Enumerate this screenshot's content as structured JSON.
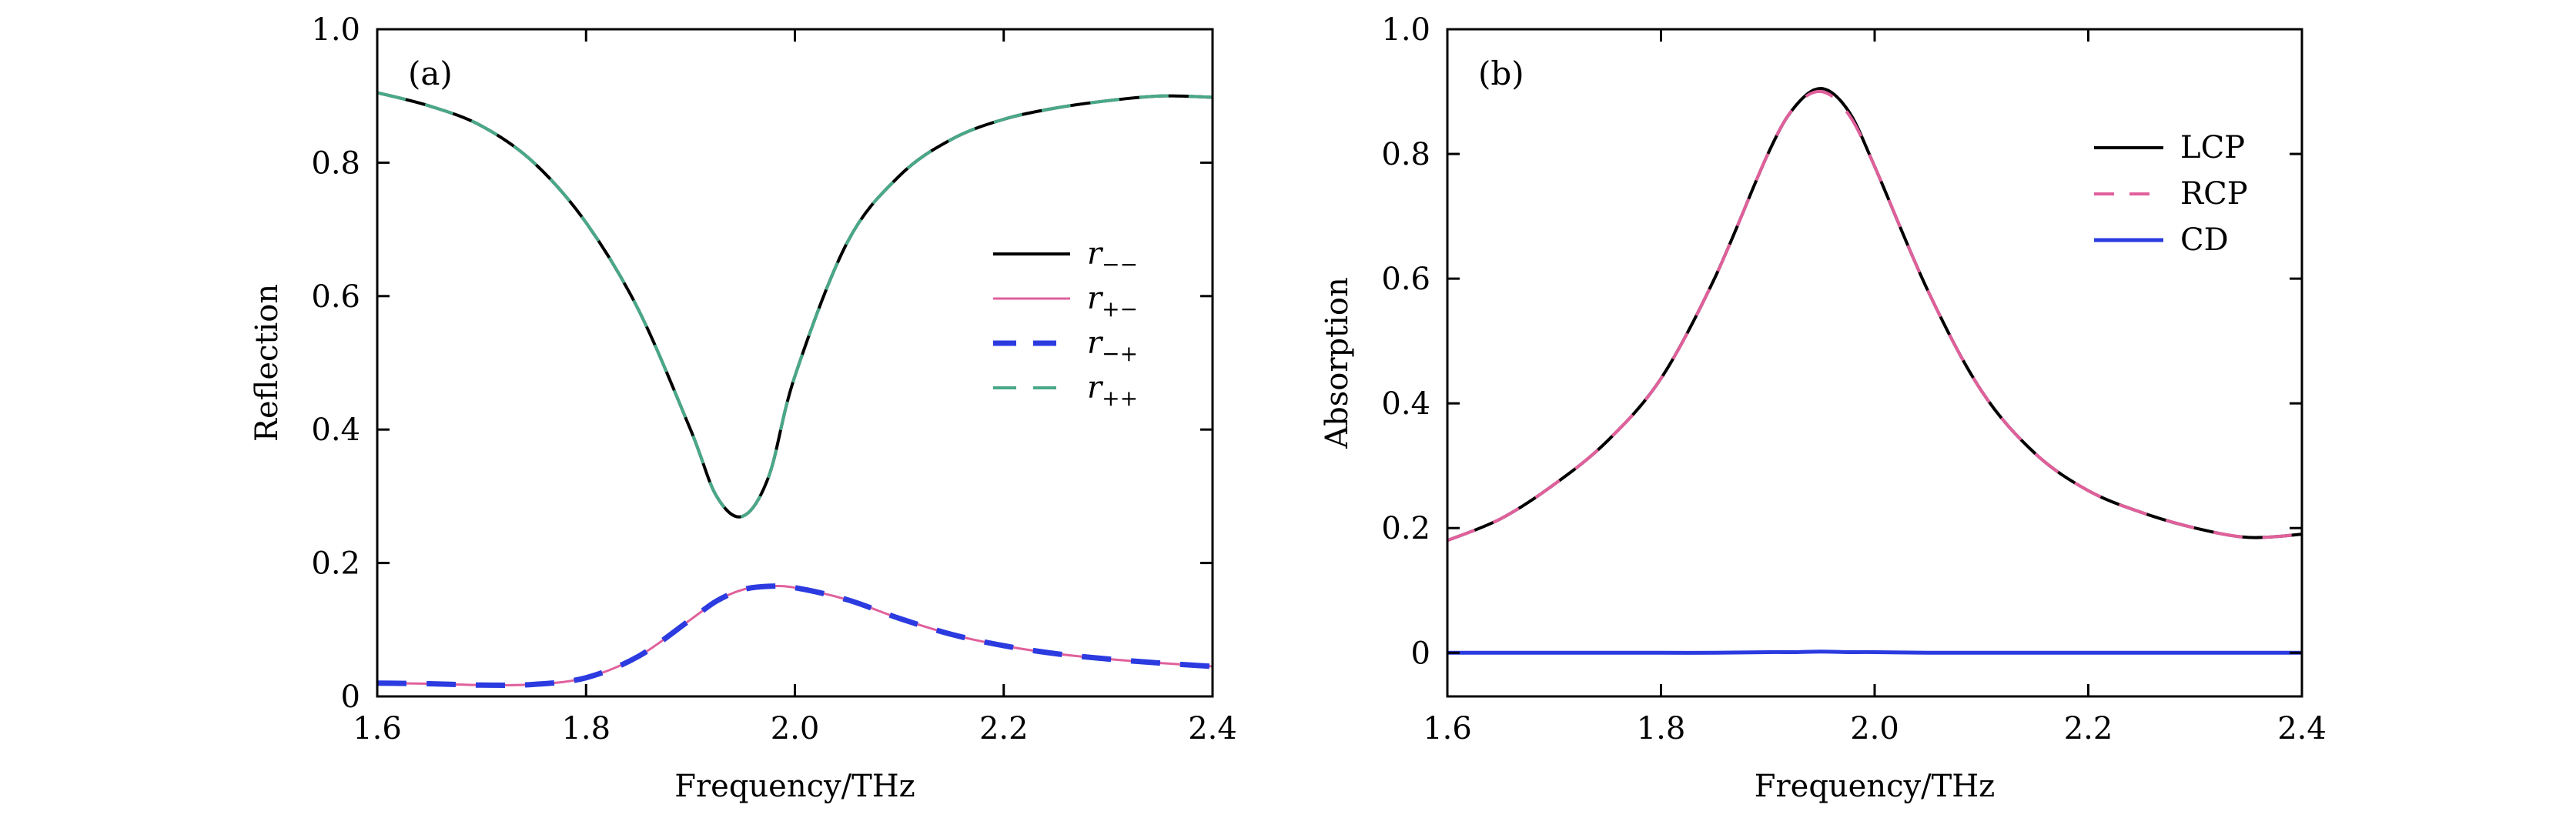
{
  "chart_data": [
    {
      "type": "line",
      "panel_label": "(a)",
      "xlabel": "Frequency/THz",
      "ylabel": "Reflection",
      "xlim": [
        1.6,
        2.4
      ],
      "ylim": [
        0,
        1.0
      ],
      "xticks": [
        1.6,
        1.8,
        2.0,
        2.2,
        2.4
      ],
      "xtick_labels": [
        "1.6",
        "1.8",
        "2.0",
        "2.2",
        "2.4"
      ],
      "yticks": [
        0,
        0.2,
        0.4,
        0.6,
        0.8,
        1.0
      ],
      "ytick_labels": [
        "0",
        "0.2",
        "0.4",
        "0.6",
        "0.8",
        "1.0"
      ],
      "legend_position": "right",
      "x": [
        1.6,
        1.65,
        1.7,
        1.75,
        1.8,
        1.85,
        1.9,
        1.925,
        1.95,
        1.975,
        2.0,
        2.05,
        2.1,
        2.15,
        2.2,
        2.25,
        2.3,
        2.35,
        2.4
      ],
      "series": [
        {
          "name": "r",
          "sub": "−−",
          "color": "#000000",
          "dash": "solid",
          "width": 4,
          "values": [
            0.905,
            0.885,
            0.855,
            0.8,
            0.71,
            0.58,
            0.4,
            0.3,
            0.27,
            0.33,
            0.48,
            0.68,
            0.78,
            0.835,
            0.865,
            0.882,
            0.893,
            0.9,
            0.898
          ]
        },
        {
          "name": "r",
          "sub": "+−",
          "color": "#e0609c",
          "dash": "solid",
          "width": 3,
          "values": [
            0.02,
            0.019,
            0.017,
            0.018,
            0.028,
            0.06,
            0.115,
            0.143,
            0.16,
            0.165,
            0.163,
            0.145,
            0.117,
            0.093,
            0.076,
            0.064,
            0.056,
            0.05,
            0.045
          ]
        },
        {
          "name": "r",
          "sub": "−+",
          "color": "#2b3be0",
          "dash": "long",
          "width": 7,
          "values": [
            0.02,
            0.019,
            0.017,
            0.018,
            0.028,
            0.06,
            0.115,
            0.143,
            0.16,
            0.165,
            0.163,
            0.145,
            0.117,
            0.093,
            0.076,
            0.064,
            0.056,
            0.05,
            0.045
          ]
        },
        {
          "name": "r",
          "sub": "++",
          "color": "#4aa88a",
          "dash": "long",
          "width": 4,
          "values": [
            0.905,
            0.885,
            0.855,
            0.8,
            0.71,
            0.58,
            0.4,
            0.3,
            0.27,
            0.33,
            0.48,
            0.68,
            0.78,
            0.835,
            0.865,
            0.882,
            0.893,
            0.9,
            0.898
          ]
        }
      ]
    },
    {
      "type": "line",
      "panel_label": "(b)",
      "xlabel": "Frequency/THz",
      "ylabel": "Absorption",
      "xlim": [
        1.6,
        2.4
      ],
      "ylim": [
        -0.07,
        1.0
      ],
      "xticks": [
        1.6,
        1.8,
        2.0,
        2.2,
        2.4
      ],
      "xtick_labels": [
        "1.6",
        "1.8",
        "2.0",
        "2.2",
        "2.4"
      ],
      "yticks": [
        0,
        0.2,
        0.4,
        0.6,
        0.8,
        1.0
      ],
      "ytick_labels": [
        "0",
        "0.2",
        "0.4",
        "0.6",
        "0.8",
        "1.0"
      ],
      "legend_position": "top-right",
      "x": [
        1.6,
        1.65,
        1.7,
        1.75,
        1.8,
        1.85,
        1.9,
        1.925,
        1.95,
        1.975,
        2.0,
        2.05,
        2.1,
        2.15,
        2.2,
        2.25,
        2.3,
        2.35,
        2.4
      ],
      "series": [
        {
          "name": "LCP",
          "color": "#000000",
          "dash": "solid",
          "width": 4,
          "values": [
            0.18,
            0.215,
            0.27,
            0.34,
            0.44,
            0.6,
            0.8,
            0.875,
            0.905,
            0.87,
            0.78,
            0.58,
            0.42,
            0.32,
            0.26,
            0.225,
            0.2,
            0.185,
            0.19
          ]
        },
        {
          "name": "RCP",
          "color": "#e0609c",
          "dash": "long",
          "width": 4,
          "values": [
            0.18,
            0.215,
            0.27,
            0.34,
            0.44,
            0.6,
            0.8,
            0.875,
            0.9,
            0.865,
            0.78,
            0.58,
            0.42,
            0.32,
            0.26,
            0.225,
            0.2,
            0.185,
            0.19
          ]
        },
        {
          "name": "CD",
          "color": "#2b3be0",
          "dash": "solid",
          "width": 5,
          "values": [
            0,
            0,
            0,
            0,
            0,
            0,
            0.001,
            0.001,
            0.002,
            0.001,
            0.001,
            0,
            0,
            0,
            0,
            0,
            0,
            0,
            0
          ]
        }
      ]
    }
  ]
}
